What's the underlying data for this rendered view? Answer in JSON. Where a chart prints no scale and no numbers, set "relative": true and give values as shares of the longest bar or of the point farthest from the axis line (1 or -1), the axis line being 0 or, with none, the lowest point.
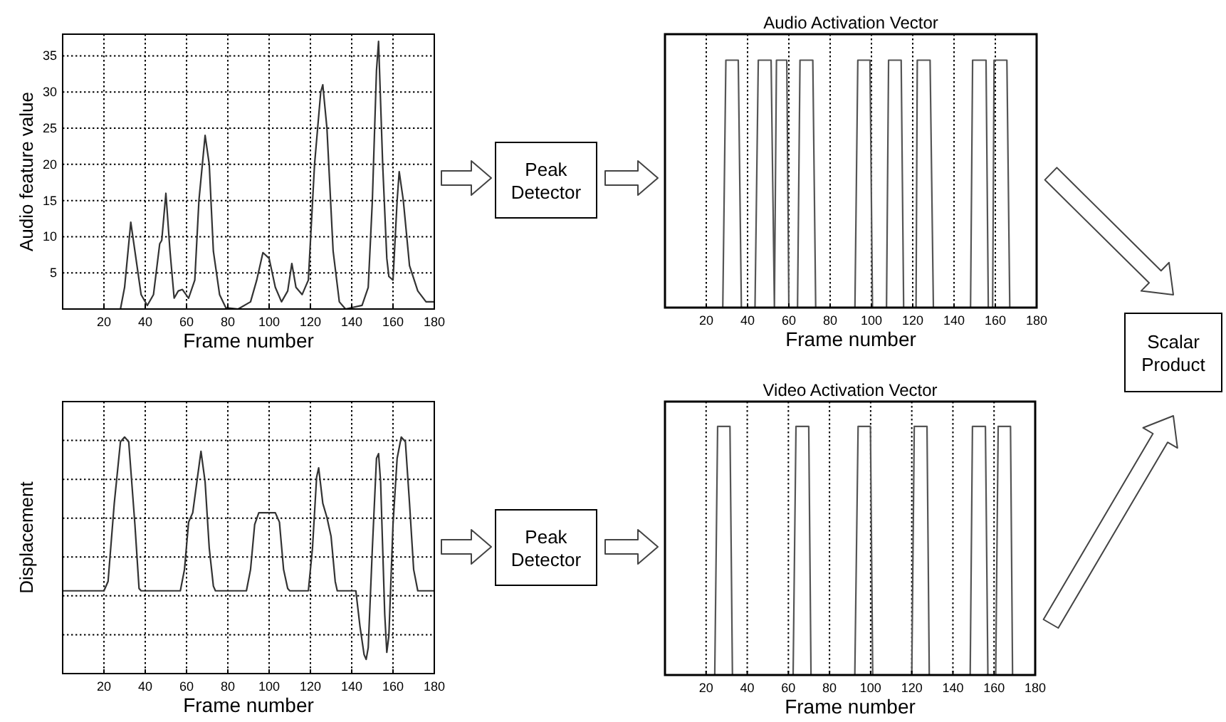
{
  "chart_data": [
    {
      "type": "line",
      "xlabel": "Frame number",
      "ylabel": "Audio feature value",
      "color": "#333333",
      "xlim": [
        0,
        180
      ],
      "xticks": [
        20,
        40,
        60,
        80,
        100,
        120,
        140,
        160,
        180
      ],
      "ylim": [
        0,
        38
      ],
      "yticks": [
        5,
        10,
        15,
        20,
        25,
        30,
        35
      ],
      "grid": true,
      "x": [
        0,
        28,
        30,
        33,
        35,
        38,
        41,
        44,
        47,
        48,
        50,
        52,
        54,
        56,
        58,
        61,
        64,
        66,
        69,
        71,
        73,
        76,
        79,
        85,
        91,
        94,
        97,
        100,
        103,
        106,
        109,
        111,
        113,
        116,
        119,
        122,
        125,
        126,
        128,
        131,
        134,
        137,
        145,
        148,
        150,
        152,
        153,
        155,
        157,
        158,
        160,
        162,
        163,
        165,
        168,
        172,
        176,
        180
      ],
      "values": [
        0,
        0,
        3,
        12,
        8,
        2,
        0.5,
        2,
        9,
        9.5,
        16,
        8,
        1.5,
        2.5,
        2.7,
        1.5,
        4,
        15,
        24,
        20,
        8,
        2,
        0.2,
        0,
        1,
        4,
        7.8,
        7,
        3,
        1,
        2.5,
        6.3,
        3,
        2,
        4,
        20,
        30,
        31,
        25,
        8,
        1,
        0,
        0.5,
        3,
        15,
        33,
        37,
        20,
        7,
        4.5,
        4,
        15,
        19,
        15,
        6,
        2.5,
        1,
        1
      ]
    },
    {
      "type": "other",
      "title": "Peak Detector"
    },
    {
      "type": "line",
      "title": "Audio Activation Vector",
      "xlabel": "Frame number",
      "relative": true,
      "tick_labels": "x",
      "color": "#555555",
      "xlim": [
        0,
        180
      ],
      "xticks": [
        20,
        40,
        60,
        80,
        100,
        120,
        140,
        160,
        180
      ],
      "grid": "x",
      "x": [
        0,
        28,
        29.5,
        35.5,
        37,
        43.6,
        45.2,
        51.4,
        53,
        54,
        59,
        60,
        64.2,
        65.4,
        71.6,
        73,
        92,
        93.4,
        99.3,
        100.5,
        107.3,
        108.3,
        114.4,
        115.6,
        121.6,
        122.2,
        128.4,
        130,
        148,
        149,
        155.5,
        156.6,
        158.7,
        159.4,
        165.6,
        167,
        180
      ],
      "values": [
        0,
        0,
        1,
        1,
        0,
        0,
        1,
        1,
        0,
        1,
        1,
        0,
        0,
        1,
        1,
        0,
        0,
        1,
        1,
        0,
        0,
        1,
        1,
        0,
        0,
        1,
        1,
        0,
        0,
        1,
        1,
        0,
        0,
        1,
        1,
        0,
        0
      ]
    },
    {
      "type": "other",
      "title": "Scalar Product"
    },
    {
      "type": "line",
      "xlabel": "Frame number",
      "ylabel": "Displacement",
      "relative": true,
      "tick_labels": "x",
      "color": "#333333",
      "xlim": [
        0,
        180
      ],
      "xticks": [
        20,
        40,
        60,
        80,
        100,
        120,
        140,
        160,
        180
      ],
      "grid": true,
      "x": [
        0,
        20,
        22,
        25,
        28,
        30,
        32,
        35,
        37,
        38,
        57,
        59,
        61,
        63,
        65,
        67,
        69,
        71,
        73,
        74,
        89,
        91,
        93,
        95,
        103,
        105,
        107,
        109,
        110,
        119,
        121,
        123,
        124,
        126,
        128,
        130,
        132,
        133,
        140,
        142,
        144,
        146,
        147,
        148,
        150,
        152,
        153,
        154,
        156,
        157,
        158,
        160,
        162,
        164,
        166,
        168,
        170,
        172,
        180
      ],
      "values": [
        0.35,
        0.35,
        0.39,
        0.72,
        0.98,
        1,
        0.98,
        0.63,
        0.36,
        0.35,
        0.35,
        0.44,
        0.64,
        0.68,
        0.81,
        0.94,
        0.81,
        0.53,
        0.37,
        0.35,
        0.35,
        0.44,
        0.63,
        0.68,
        0.68,
        0.64,
        0.44,
        0.36,
        0.35,
        0.35,
        0.53,
        0.83,
        0.87,
        0.72,
        0.66,
        0.58,
        0.39,
        0.35,
        0.35,
        0.35,
        0.2,
        0.08,
        0.06,
        0.11,
        0.53,
        0.91,
        0.93,
        0.81,
        0.25,
        0.09,
        0.16,
        0.63,
        0.91,
        1,
        0.98,
        0.72,
        0.44,
        0.35,
        0.35
      ]
    },
    {
      "type": "other",
      "title": "Peak Detector"
    },
    {
      "type": "line",
      "title": "Video Activation Vector",
      "xlabel": "Frame number",
      "relative": true,
      "tick_labels": "x",
      "color": "#555555",
      "xlim": [
        0,
        180
      ],
      "xticks": [
        20,
        40,
        60,
        80,
        100,
        120,
        140,
        160,
        180
      ],
      "grid": "x",
      "x": [
        0,
        24.2,
        25.6,
        31.6,
        32.8,
        62.3,
        63.7,
        69.9,
        71,
        92.3,
        93.9,
        99.9,
        101,
        120,
        121.2,
        127.4,
        128.5,
        148.4,
        149.5,
        155.8,
        157,
        160.8,
        162,
        168,
        169,
        180
      ],
      "values": [
        0,
        0,
        1,
        1,
        0,
        0,
        1,
        1,
        0,
        0,
        1,
        1,
        0,
        0,
        1,
        1,
        0,
        0,
        1,
        1,
        0,
        0,
        1,
        1,
        0,
        0
      ]
    }
  ]
}
